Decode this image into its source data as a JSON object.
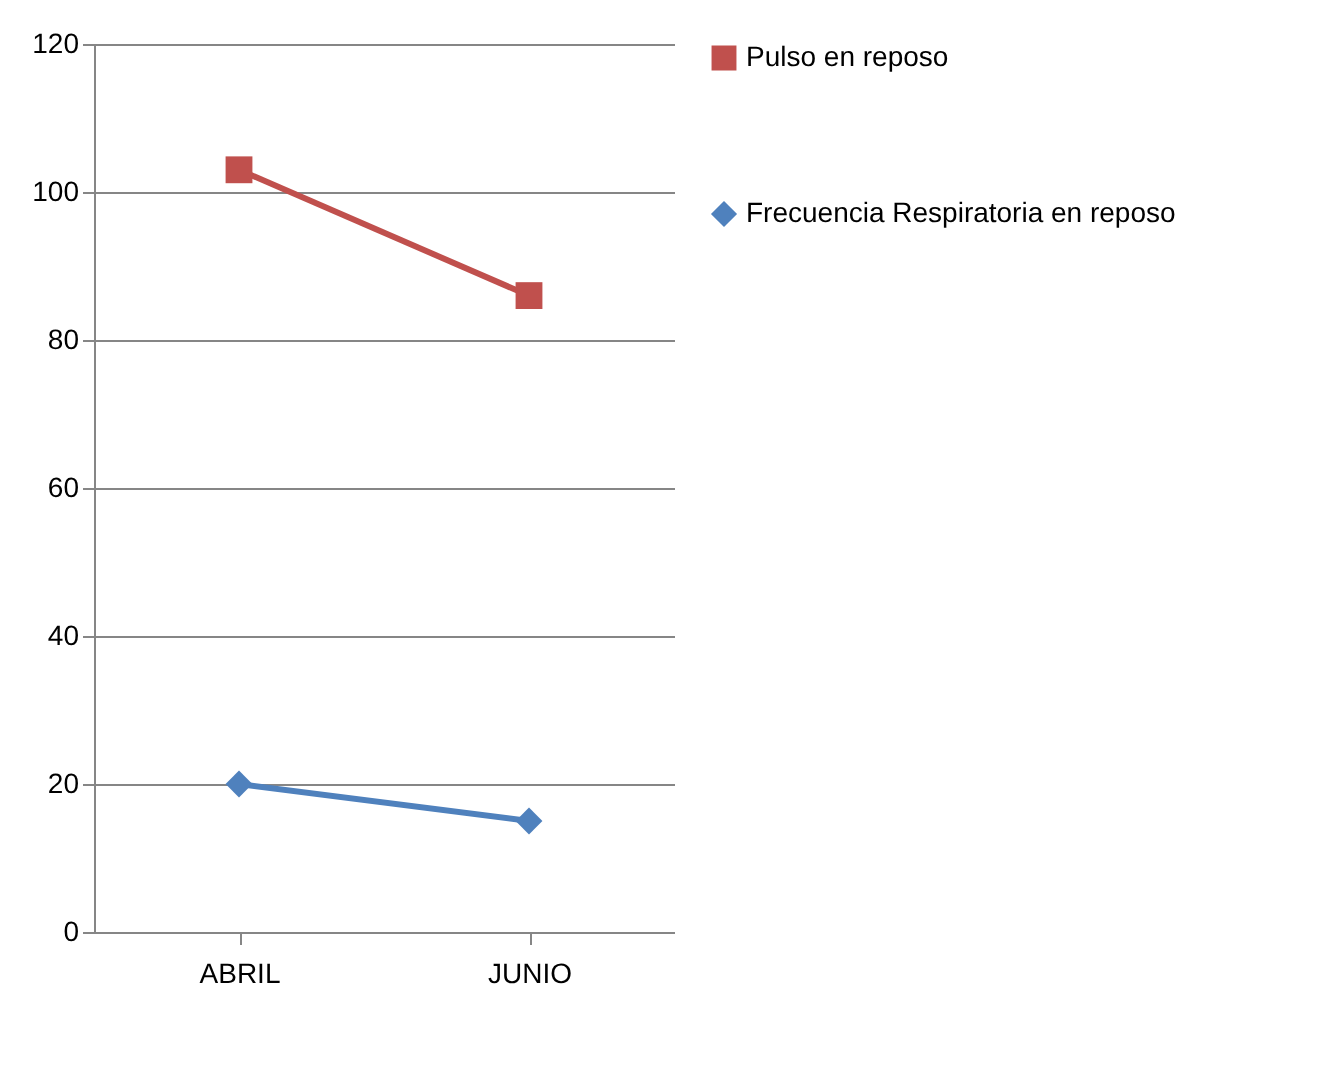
{
  "chart_data": {
    "type": "line",
    "categories": [
      "ABRIL",
      "JUNIO"
    ],
    "series": [
      {
        "name": "Pulso en reposo",
        "color": "#c0504d",
        "marker": "square",
        "values": [
          103,
          86
        ]
      },
      {
        "name": "Frecuencia Respiratoria en reposo",
        "color": "#4f81bd",
        "marker": "diamond",
        "values": [
          20,
          15
        ]
      }
    ],
    "ylim": [
      0,
      120
    ],
    "yticks": [
      0,
      20,
      40,
      60,
      80,
      100,
      120
    ],
    "grid": "y",
    "legend": "right"
  }
}
